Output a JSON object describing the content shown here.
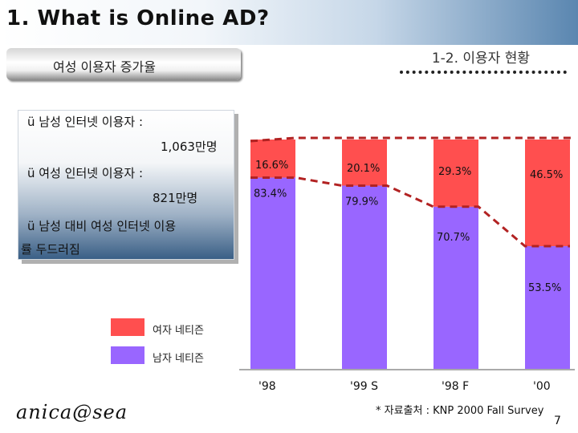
{
  "title": "1. What is Online AD?",
  "subtitle": "1-2. 이용자 현황",
  "pill_label": "여성 이용자 증가율",
  "info": {
    "male_label": "ü 남성 인터넷 이용자 :",
    "male_value": "1,063만명",
    "female_label": "ü 여성 인터넷 이용자 :",
    "female_value": "821만명",
    "note_line1": "ü 남성 대비 여성 인터넷 이용",
    "note_line2": "률 두드러짐"
  },
  "colors": {
    "female": "#ff4f4f",
    "male": "#9966ff",
    "dashed_line": "#b22222"
  },
  "chart_data": {
    "type": "bar",
    "stacked": true,
    "percent": true,
    "categories": [
      "'98",
      "'99 S",
      "'98 F",
      "'00"
    ],
    "series": [
      {
        "name": "남자 네티즌",
        "values": [
          83.4,
          79.9,
          70.7,
          53.5
        ],
        "labels": [
          "83.4%",
          "79.9%",
          "70.7%",
          "53.5%"
        ]
      },
      {
        "name": "여자 네티즌",
        "values": [
          16.6,
          20.1,
          29.3,
          46.5
        ],
        "labels": [
          "16.6%",
          "20.1%",
          "29.3%",
          "46.5%"
        ]
      }
    ],
    "ylim": [
      0,
      100
    ],
    "grid": false,
    "legend": "bottom-left",
    "trend_line": "dashed line connecting top of male segments"
  },
  "legend": {
    "female": "여자 네티즌",
    "male": "남자 네티즌"
  },
  "source": "* 자료출처 : KNP 2000 Fall Survey",
  "page_number": "7",
  "logo_text": "anica@sea"
}
